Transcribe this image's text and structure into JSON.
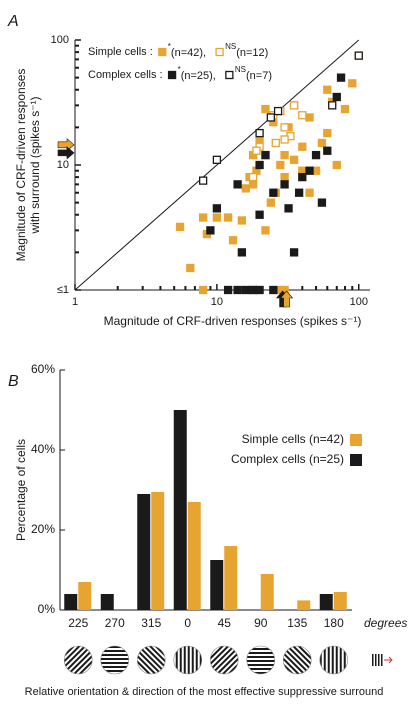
{
  "chart_data": [
    {
      "type": "scatter",
      "panel": "A",
      "xlabel": "Magnitude of CRF-driven responses (spikes s⁻¹)",
      "ylabel": [
        "Magnitude of CRF-driven responses",
        "with surround (spikes s⁻¹)"
      ],
      "xscale": "log",
      "yscale": "log",
      "xlim": [
        1,
        120
      ],
      "ylim": [
        1,
        100
      ],
      "xticks": [
        1,
        10,
        100
      ],
      "yticks": [
        {
          "value": 1,
          "label": "≤1"
        },
        10,
        100
      ],
      "minor_ticks": [
        2,
        3,
        4,
        5,
        6,
        7,
        8,
        9,
        20,
        30,
        40,
        50,
        60,
        70,
        80,
        90
      ],
      "diagonal": true,
      "series": [
        {
          "group": "Simple cells :",
          "superscript": "*",
          "name": "(n=42),",
          "color": "#e8a430",
          "filled": true,
          "x": [
            5.5,
            6.5,
            8,
            8.5,
            10,
            12,
            13,
            15,
            16,
            17,
            18,
            19,
            18,
            20,
            22,
            24,
            26,
            28,
            30,
            30,
            32,
            35,
            40,
            45,
            50,
            55,
            60,
            70,
            65,
            80,
            90,
            100,
            8,
            18,
            28,
            30,
            40,
            25,
            22,
            45,
            35,
            60
          ],
          "values": [
            3.2,
            1.5,
            3.8,
            2.8,
            3.8,
            3.8,
            2.5,
            3.6,
            6.5,
            8,
            7,
            9,
            12,
            16,
            3,
            5,
            6,
            10,
            12,
            8,
            20,
            11,
            14,
            24,
            9,
            15,
            18,
            10,
            32,
            28,
            45,
            75,
            1,
            1,
            1,
            1,
            9,
            22,
            28,
            6,
            30,
            40
          ]
        },
        {
          "group": "Simple cells :",
          "superscript": "NS",
          "name": "(n=12)",
          "color": "#e8a430",
          "filled": false,
          "x": [
            22,
            25,
            28,
            30,
            20,
            35,
            19,
            26,
            33,
            40,
            30,
            18
          ],
          "values": [
            12,
            25,
            27,
            20,
            14,
            30,
            13,
            15,
            17,
            25,
            16,
            8
          ]
        },
        {
          "group": "Complex cells :",
          "superscript": "*",
          "name": "(n=25),",
          "color": "#1a1a1a",
          "filled": true,
          "x": [
            9,
            10,
            12,
            14,
            16,
            18,
            20,
            14,
            20,
            22,
            25,
            30,
            32,
            35,
            38,
            45,
            50,
            60,
            75,
            70,
            55,
            20,
            15,
            25,
            40
          ],
          "values": [
            3,
            4.5,
            1,
            1,
            1,
            1,
            1,
            7,
            10,
            12,
            6,
            7,
            4.5,
            2,
            6,
            9,
            12,
            13,
            50,
            35,
            5,
            4,
            2,
            1,
            8
          ]
        },
        {
          "group": "Complex cells :",
          "superscript": "NS",
          "name": "(n=7)",
          "color": "#1a1a1a",
          "filled": false,
          "x": [
            10,
            8,
            20,
            24,
            65,
            100,
            27
          ],
          "values": [
            11,
            7.5,
            18,
            24,
            30,
            75,
            27
          ]
        }
      ],
      "arrows": [
        {
          "axis": "y",
          "color": "#e8a430",
          "value": 14.5
        },
        {
          "axis": "y",
          "color": "#1a1a1a",
          "value": 12.5
        },
        {
          "axis": "x",
          "color": "#1a1a1a",
          "value": 30
        },
        {
          "axis": "x",
          "color": "#e8a430",
          "value": 30
        }
      ]
    },
    {
      "type": "bar",
      "panel": "B",
      "ylabel": "Percentage of cells",
      "xlabel": "Relative orientation & direction of the most effective suppressive surround",
      "xunit": "degrees",
      "categories": [
        "225",
        "270",
        "315",
        "0",
        "45",
        "90",
        "135",
        "180"
      ],
      "ylim": [
        0,
        60
      ],
      "yticks": [
        {
          "value": 0,
          "label": "0%"
        },
        {
          "value": 20,
          "label": "20%"
        },
        {
          "value": 40,
          "label": "40%"
        },
        {
          "value": 60,
          "label": "60%"
        }
      ],
      "series": [
        {
          "name": "Simple cells (n=42)",
          "color": "#e8a430",
          "values": [
            7,
            0,
            29.5,
            27,
            16,
            9,
            2.4,
            4.5
          ]
        },
        {
          "name": "Complex cells (n=25)",
          "color": "#1a1a1a",
          "values": [
            4,
            4,
            29,
            50,
            12.5,
            0,
            0,
            4
          ]
        }
      ]
    }
  ]
}
